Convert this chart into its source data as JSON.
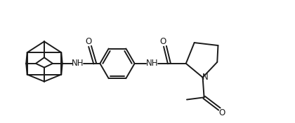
{
  "bg_color": "#ffffff",
  "line_color": "#1a1a1a",
  "line_width": 1.4,
  "font_size": 8.5,
  "figsize": [
    4.2,
    1.76
  ],
  "dpi": 100,
  "xlim": [
    0,
    10.5
  ],
  "ylim": [
    0,
    4.2
  ]
}
